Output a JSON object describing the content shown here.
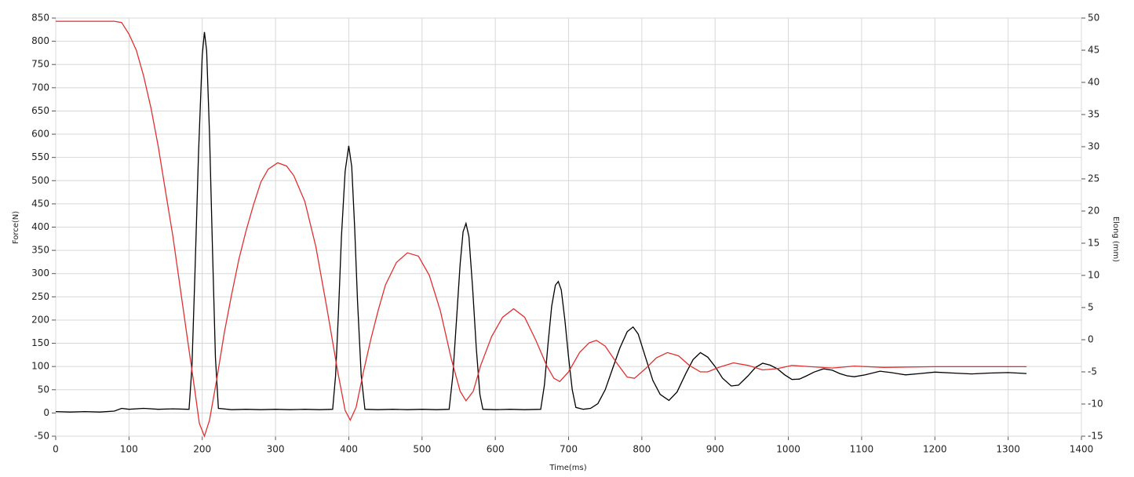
{
  "chart_data": {
    "type": "line",
    "xlabel": "Time(ms)",
    "ylabel": "Force(N)",
    "y2label": "Elong (mm)",
    "xlim": [
      0,
      1400
    ],
    "xticks": [
      0,
      100,
      200,
      300,
      400,
      500,
      600,
      700,
      800,
      900,
      1000,
      1100,
      1200,
      1300,
      1400
    ],
    "ylim": [
      -50,
      850
    ],
    "yticks": [
      -50,
      0,
      50,
      100,
      150,
      200,
      250,
      300,
      350,
      400,
      450,
      500,
      550,
      600,
      650,
      700,
      750,
      800,
      850
    ],
    "y2lim": [
      -15,
      50
    ],
    "y2ticks": [
      -15,
      -10,
      -5,
      0,
      5,
      10,
      15,
      20,
      25,
      30,
      35,
      40,
      45,
      50
    ],
    "grid": true,
    "series": [
      {
        "color": "#000000",
        "x": [
          0,
          20,
          40,
          60,
          80,
          90,
          100,
          120,
          140,
          160,
          180,
          182,
          186,
          190,
          195,
          200,
          203,
          206,
          210,
          214,
          218,
          222,
          240,
          260,
          280,
          300,
          320,
          340,
          360,
          378,
          382,
          386,
          390,
          395,
          400,
          404,
          408,
          412,
          417,
          422,
          440,
          460,
          480,
          500,
          520,
          537,
          542,
          547,
          552,
          556,
          560,
          564,
          569,
          574,
          579,
          583,
          600,
          620,
          640,
          662,
          667,
          672,
          677,
          682,
          686,
          690,
          695,
          700,
          705,
          710,
          720,
          730,
          740,
          750,
          760,
          770,
          780,
          788,
          795,
          805,
          815,
          825,
          837,
          848,
          860,
          870,
          880,
          890,
          900,
          910,
          922,
          932,
          945,
          955,
          965,
          975,
          985,
          995,
          1005,
          1015,
          1025,
          1035,
          1048,
          1060,
          1070,
          1080,
          1090,
          1105,
          1125,
          1140,
          1160,
          1180,
          1200,
          1225,
          1250,
          1275,
          1300,
          1325
        ],
        "values": [
          3,
          2,
          3,
          2,
          4,
          10,
          8,
          10,
          8,
          9,
          8,
          8,
          100,
          300,
          560,
          770,
          820,
          780,
          600,
          350,
          120,
          10,
          7,
          8,
          7,
          8,
          7,
          8,
          7,
          8,
          80,
          220,
          380,
          520,
          575,
          530,
          400,
          240,
          80,
          8,
          7,
          8,
          7,
          8,
          7,
          8,
          80,
          200,
          320,
          390,
          408,
          380,
          270,
          140,
          40,
          8,
          7,
          8,
          7,
          8,
          60,
          150,
          230,
          275,
          283,
          265,
          200,
          120,
          50,
          12,
          8,
          10,
          20,
          50,
          95,
          140,
          175,
          185,
          170,
          120,
          70,
          40,
          27,
          45,
          85,
          115,
          130,
          120,
          100,
          75,
          58,
          60,
          80,
          98,
          107,
          103,
          95,
          82,
          72,
          73,
          80,
          88,
          95,
          92,
          85,
          80,
          78,
          82,
          90,
          87,
          82,
          85,
          88,
          86,
          84,
          86,
          87,
          85
        ]
      },
      {
        "color": "#e03030",
        "axis": "y2",
        "x": [
          0,
          80,
          90,
          100,
          110,
          120,
          130,
          140,
          150,
          160,
          170,
          180,
          190,
          196,
          203,
          210,
          220,
          230,
          240,
          250,
          260,
          270,
          280,
          290,
          303,
          315,
          325,
          340,
          355,
          370,
          385,
          395,
          402,
          410,
          420,
          430,
          440,
          450,
          465,
          480,
          495,
          510,
          525,
          540,
          552,
          560,
          570,
          580,
          595,
          610,
          625,
          640,
          655,
          670,
          680,
          688,
          700,
          715,
          728,
          738,
          750,
          765,
          780,
          790,
          805,
          820,
          835,
          850,
          865,
          880,
          890,
          905,
          925,
          945,
          965,
          985,
          1005,
          1030,
          1060,
          1090,
          1130,
          1200,
          1325
        ],
        "values": [
          49.5,
          49.5,
          49.3,
          47.5,
          45,
          41,
          36,
          30,
          23,
          16,
          8,
          0,
          -8,
          -13,
          -15,
          -12.5,
          -6,
          1,
          7,
          12.5,
          17,
          21,
          24.5,
          26.5,
          27.5,
          27,
          25.5,
          21.5,
          14.5,
          5,
          -5,
          -11,
          -12.5,
          -10.5,
          -5,
          0,
          4.5,
          8.5,
          12,
          13.5,
          13,
          10,
          4.5,
          -3,
          -8,
          -9.5,
          -8,
          -4,
          0.5,
          3.5,
          4.8,
          3.5,
          0,
          -4,
          -6,
          -6.5,
          -5,
          -2,
          -0.5,
          -0.1,
          -1,
          -3.5,
          -5.8,
          -6,
          -4.5,
          -2.8,
          -2,
          -2.5,
          -4,
          -5,
          -5,
          -4.3,
          -3.6,
          -4,
          -4.7,
          -4.5,
          -4,
          -4.2,
          -4.4,
          -4.1,
          -4.3,
          -4.2,
          -4.2
        ]
      }
    ]
  }
}
